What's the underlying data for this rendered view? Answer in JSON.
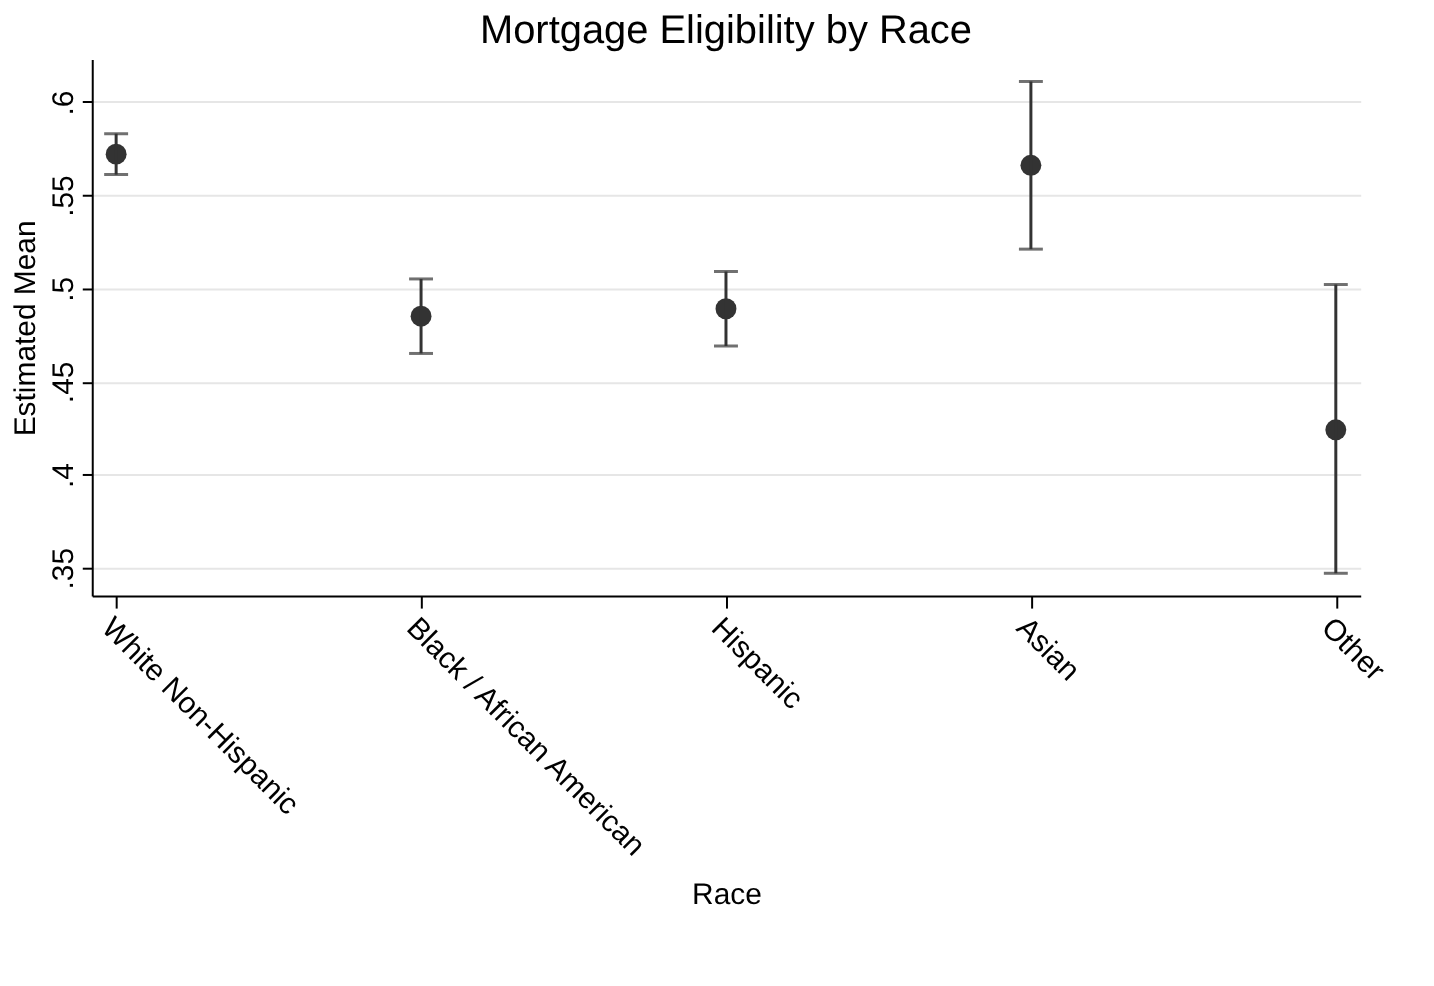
{
  "chart_data": {
    "type": "scatter",
    "title": "Mortgage Eligibility by Race",
    "xlabel": "Race",
    "ylabel": "Estimated Mean",
    "categories": [
      "White Non-Hispanic",
      "Black / African American",
      "Hispanic",
      "Asian",
      "Other"
    ],
    "values": [
      0.572,
      0.485,
      0.489,
      0.566,
      0.424
    ],
    "errors": [
      [
        0.561,
        0.583
      ],
      [
        0.465,
        0.505
      ],
      [
        0.469,
        0.509
      ],
      [
        0.521,
        0.611
      ],
      [
        0.347,
        0.502
      ]
    ],
    "color": "#333333",
    "marker": "circle",
    "ylim": [
      0.335,
      0.623
    ],
    "yticks": [
      {
        "value": 0.35,
        "label": ".35"
      },
      {
        "value": 0.4,
        "label": ".4"
      },
      {
        "value": 0.45,
        "label": ".45"
      },
      {
        "value": 0.5,
        "label": ".5"
      },
      {
        "value": 0.55,
        "label": ".55"
      },
      {
        "value": 0.6,
        "label": ".6"
      }
    ],
    "grid": "y"
  }
}
